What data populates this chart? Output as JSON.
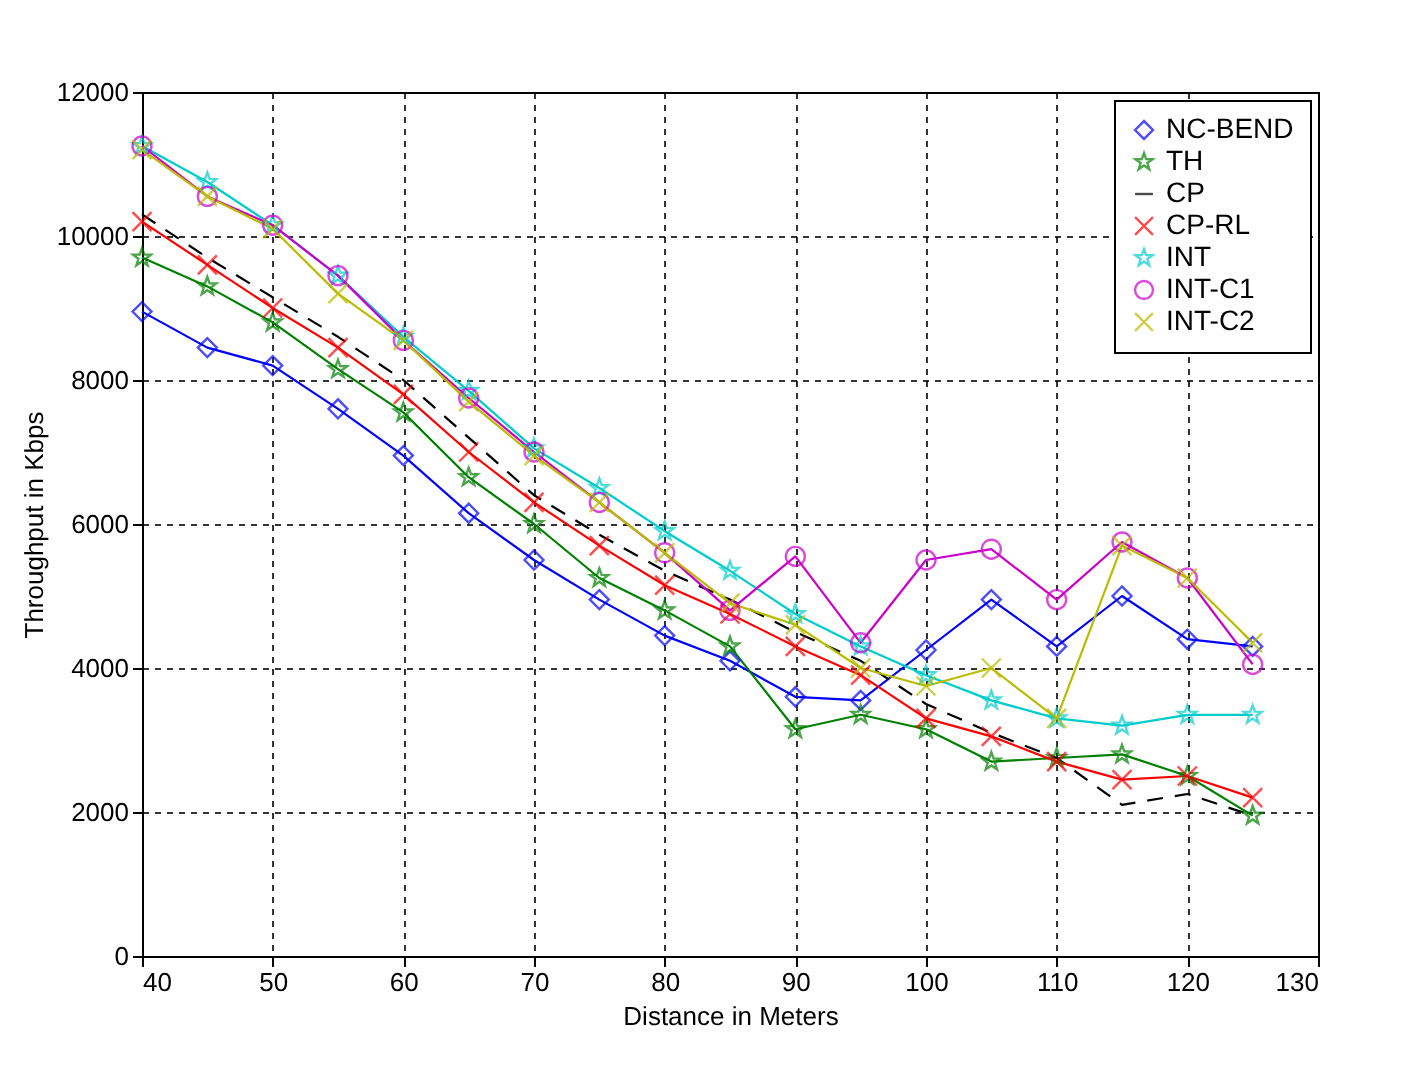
{
  "chart_data": {
    "type": "line",
    "xlabel": "Distance in Meters",
    "ylabel": "Throughput in Kbps",
    "x": [
      40,
      45,
      50,
      55,
      60,
      65,
      70,
      75,
      80,
      85,
      90,
      95,
      100,
      105,
      110,
      115,
      120,
      125
    ],
    "xlim": [
      40,
      130
    ],
    "xticks": [
      40,
      50,
      60,
      70,
      80,
      90,
      100,
      110,
      120,
      130
    ],
    "ylim": [
      0,
      12000
    ],
    "yticks": [
      0,
      2000,
      4000,
      6000,
      8000,
      10000,
      12000
    ],
    "grid": true,
    "legend": "top right",
    "series": [
      {
        "name": "NC-BEND",
        "color": "#0000ff",
        "marker": "diamond",
        "line_style": "solid",
        "values": [
          8950,
          8450,
          8200,
          7600,
          6950,
          6150,
          5500,
          4950,
          4450,
          4100,
          3600,
          3550,
          4250,
          4950,
          4300,
          5000,
          4400,
          4300
        ]
      },
      {
        "name": "TH",
        "color": "#008000",
        "marker": "star",
        "line_style": "solid",
        "values": [
          9700,
          9300,
          8800,
          8150,
          7550,
          6650,
          6000,
          5250,
          4800,
          4300,
          3150,
          3350,
          3150,
          2700,
          2750,
          2800,
          2500,
          1950
        ]
      },
      {
        "name": "CP",
        "color": "#000000",
        "marker": "none",
        "line_style": "dashed",
        "values": [
          10300,
          9700,
          9150,
          8600,
          8000,
          7200,
          6400,
          5850,
          5350,
          4950,
          4500,
          4100,
          3500,
          3100,
          2750,
          2100,
          2250,
          1950
        ]
      },
      {
        "name": "CP-RL",
        "color": "#ff0000",
        "marker": "cross",
        "line_style": "solid",
        "values": [
          10200,
          9600,
          9000,
          8450,
          7800,
          7000,
          6300,
          5700,
          5150,
          4750,
          4300,
          3900,
          3300,
          3050,
          2700,
          2450,
          2500,
          2200
        ]
      },
      {
        "name": "INT",
        "color": "#00cccc",
        "marker": "star",
        "line_style": "solid",
        "values": [
          11250,
          10750,
          10150,
          9450,
          8600,
          7850,
          7050,
          6500,
          5900,
          5350,
          4750,
          4300,
          3900,
          3550,
          3300,
          3200,
          3350,
          3350
        ]
      },
      {
        "name": "INT-C1",
        "color": "#cc00cc",
        "marker": "circle",
        "line_style": "solid",
        "values": [
          11250,
          10550,
          10150,
          9450,
          8550,
          7750,
          7000,
          6300,
          5600,
          4800,
          5550,
          4350,
          5500,
          5650,
          4950,
          5750,
          5250,
          4050
        ]
      },
      {
        "name": "INT-C2",
        "color": "#bbbb00",
        "marker": "cross",
        "line_style": "solid",
        "values": [
          11200,
          10550,
          10100,
          9200,
          8550,
          7700,
          6950,
          6300,
          5600,
          4900,
          4600,
          4000,
          3750,
          4000,
          3300,
          5700,
          5250,
          4350
        ]
      }
    ]
  }
}
